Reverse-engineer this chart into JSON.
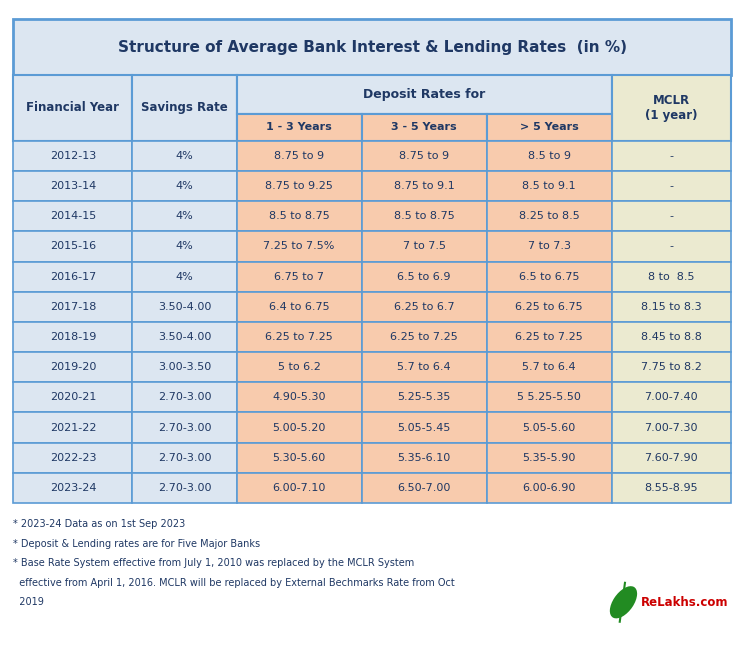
{
  "title": "Structure of Average Bank Interest & Lending Rates",
  "title_suffix": "  (in %)",
  "deposit_header": "Deposit Rates for",
  "rows": [
    [
      "2012-13",
      "4%",
      "8.75 to 9",
      "8.75 to 9",
      "8.5 to 9",
      "-"
    ],
    [
      "2013-14",
      "4%",
      "8.75 to 9.25",
      "8.75 to 9.1",
      "8.5 to 9.1",
      "-"
    ],
    [
      "2014-15",
      "4%",
      "8.5 to 8.75",
      "8.5 to 8.75",
      "8.25 to 8.5",
      "-"
    ],
    [
      "2015-16",
      "4%",
      "7.25 to 7.5%",
      "7 to 7.5",
      "7 to 7.3",
      "-"
    ],
    [
      "2016-17",
      "4%",
      "6.75 to 7",
      "6.5 to 6.9",
      "6.5 to 6.75",
      "8 to  8.5"
    ],
    [
      "2017-18",
      "3.50-4.00",
      "6.4 to 6.75",
      "6.25 to 6.7",
      "6.25 to 6.75",
      "8.15 to 8.3"
    ],
    [
      "2018-19",
      "3.50-4.00",
      "6.25 to 7.25",
      "6.25 to 7.25",
      "6.25 to 7.25",
      "8.45 to 8.8"
    ],
    [
      "2019-20",
      "3.00-3.50",
      "5 to 6.2",
      "5.7 to 6.4",
      "5.7 to 6.4",
      "7.75 to 8.2"
    ],
    [
      "2020-21",
      "2.70-3.00",
      "4.90-5.30",
      "5.25-5.35",
      "5 5.25-5.50",
      "7.00-7.40"
    ],
    [
      "2021-22",
      "2.70-3.00",
      "5.00-5.20",
      "5.05-5.45",
      "5.05-5.60",
      "7.00-7.30"
    ],
    [
      "2022-23",
      "2.70-3.00",
      "5.30-5.60",
      "5.35-6.10",
      "5.35-5.90",
      "7.60-7.90"
    ],
    [
      "2023-24",
      "2.70-3.00",
      "6.00-7.10",
      "6.50-7.00",
      "6.00-6.90",
      "8.55-8.95"
    ]
  ],
  "footnotes": [
    "* 2023-24 Data as on 1st Sep 2023",
    "* Deposit & Lending rates are for Five Major Banks",
    "* Base Rate System effective from July 1, 2010 was replaced by the MCLR System",
    "  effective from April 1, 2016. MCLR will be replaced by External Bechmarks Rate from Oct",
    "  2019"
  ],
  "bg_color": "#ffffff",
  "title_bg": "#dce6f1",
  "header_bg_left": "#dce6f1",
  "header_bg_deposit": "#dce6f1",
  "header_bg_mclr": "#ebead0",
  "deposit_col_bg": "#f8cbad",
  "savings_col_bg": "#dce6f1",
  "fy_col_bg": "#dce6f1",
  "mclr_col_bg": "#ebead0",
  "border_color": "#5b9bd5",
  "text_color": "#1f3864",
  "footnote_color": "#1f3864",
  "relakhs_color": "#cc0000"
}
